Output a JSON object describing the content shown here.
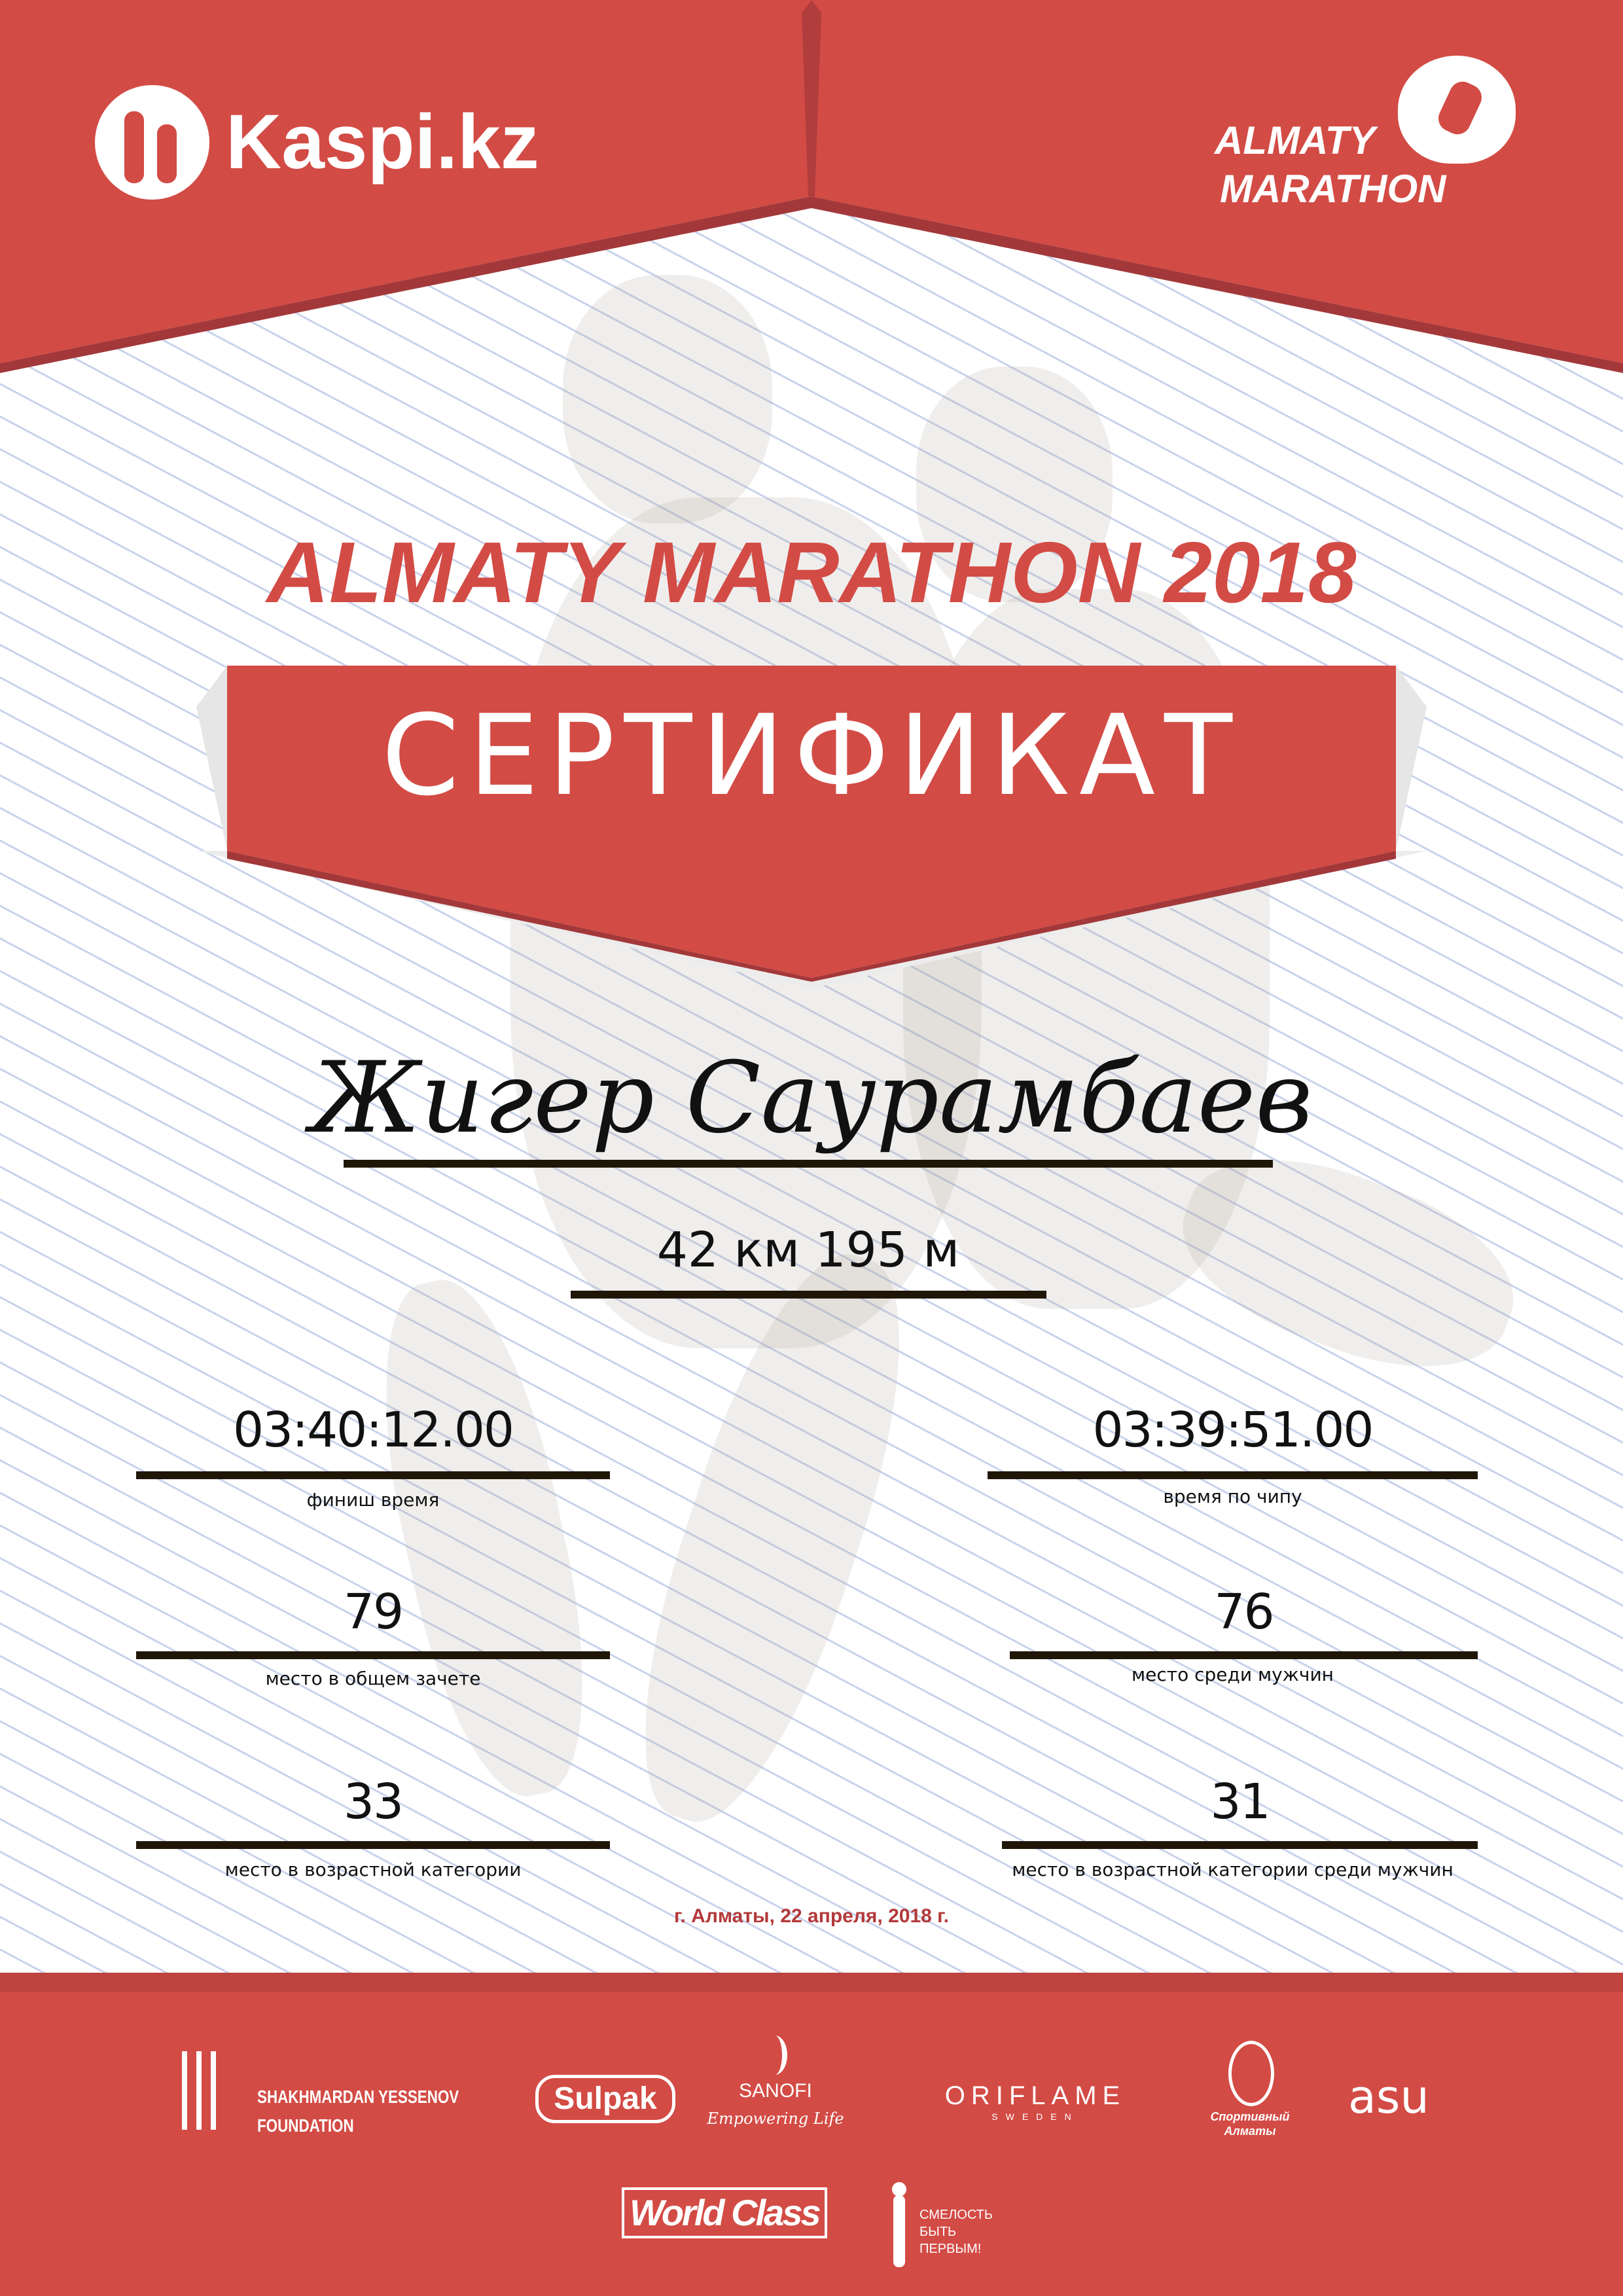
{
  "header": {
    "sponsor_logo": "Kaspi.kz",
    "event_logo_line1": "ALMATY",
    "event_logo_line2": "MARATHON"
  },
  "title": "ALMATY MARATHON 2018",
  "banner": "СЕРТИФИКАТ",
  "participant": {
    "name": "Жигер Саурамбаев",
    "distance": "42 км 195 м"
  },
  "results": [
    {
      "value": "03:40:12.00",
      "label": "финиш время"
    },
    {
      "value": "03:39:51.00",
      "label": "время по чипу"
    },
    {
      "value": "79",
      "label": "место в общем зачете"
    },
    {
      "value": "76",
      "label": "место среди мужчин"
    },
    {
      "value": "33",
      "label": "место в возрастной категории"
    },
    {
      "value": "31",
      "label": "место в возрастной категории среди мужчин"
    }
  ],
  "date_place": "г. Алматы, 22 апреля, 2018 г.",
  "sponsors": {
    "yessenov_line1": "SHAKHMARDAN YESSENOV",
    "yessenov_line2": "FOUNDATION",
    "sulpak": "Sulpak",
    "sanofi": "SANOFI",
    "sanofi_tagline": "Empowering Life",
    "oriflame": "ORIFLAME",
    "oriflame_sub": "SWEDEN",
    "sport_almaty": "Спортивный Алматы",
    "asu": "asu",
    "worldclass": "World Class",
    "fund_line1": "СМЕЛОСТЬ",
    "fund_line2": "БЫТЬ",
    "fund_line3": "ПЕРВЫМ!"
  },
  "colors": {
    "brand_red": "#d34b45",
    "dark_red": "#a3383a",
    "line": "#201608",
    "date_red": "#b3393a"
  }
}
